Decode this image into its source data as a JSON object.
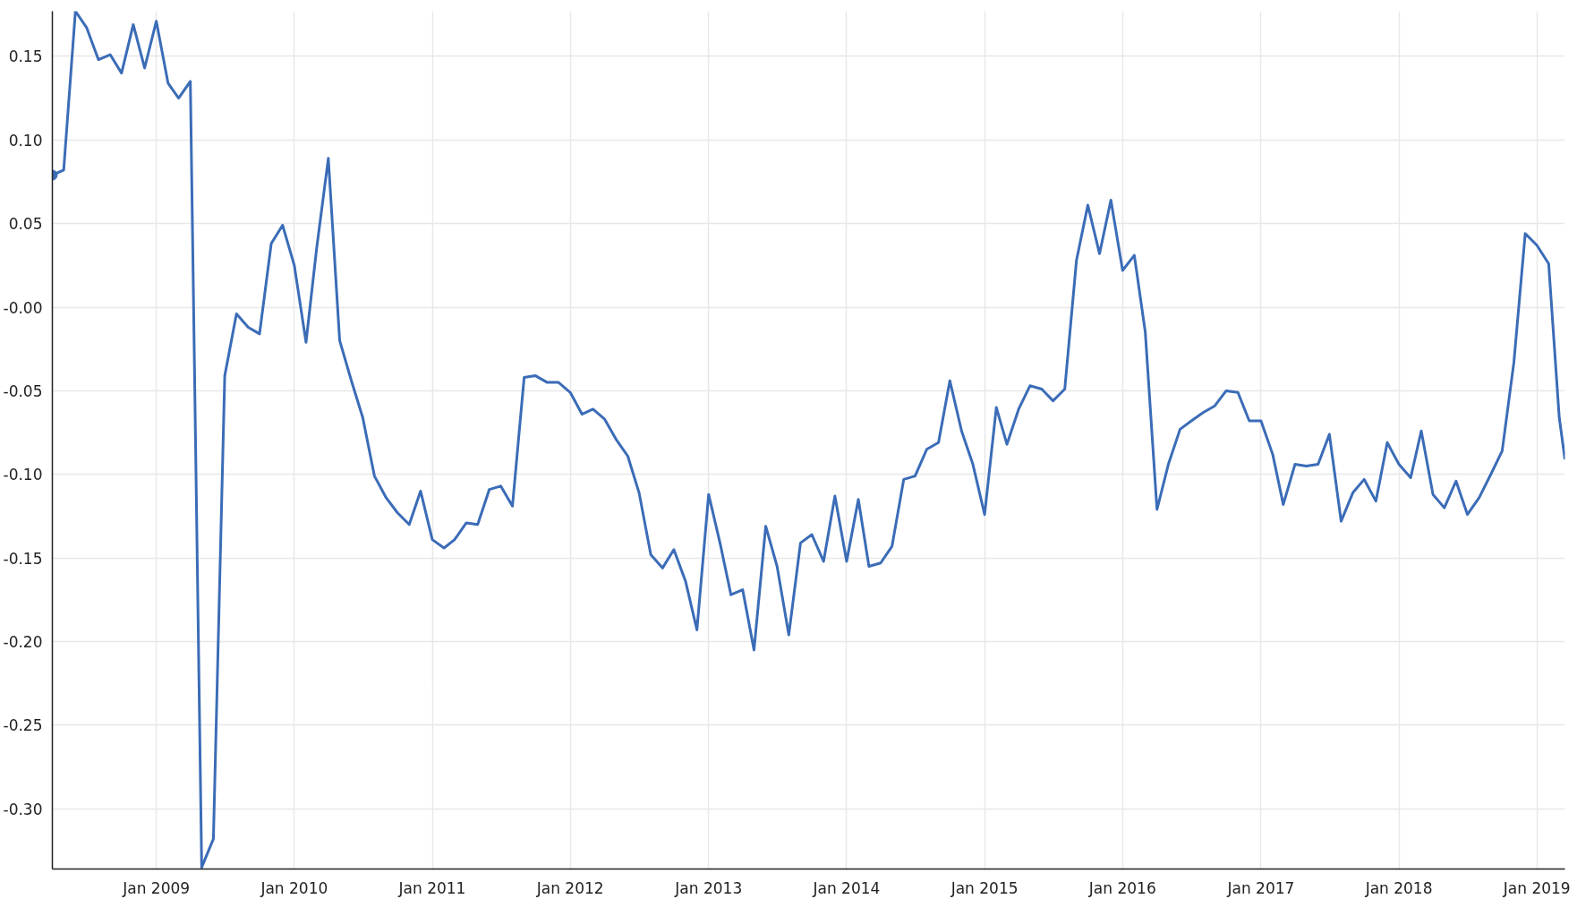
{
  "chart_data": {
    "type": "line",
    "x": [
      "2008-04",
      "2008-05",
      "2008-06",
      "2008-07",
      "2008-08",
      "2008-09",
      "2008-10",
      "2008-11",
      "2008-12",
      "2009-01",
      "2009-02",
      "2009-03",
      "2009-04",
      "2009-05",
      "2009-06",
      "2009-07",
      "2009-08",
      "2009-09",
      "2009-10",
      "2009-11",
      "2009-12",
      "2010-01",
      "2010-02",
      "2010-03",
      "2010-04",
      "2010-05",
      "2010-06",
      "2010-07",
      "2010-08",
      "2010-09",
      "2010-10",
      "2010-11",
      "2010-12",
      "2011-01",
      "2011-02",
      "2011-03",
      "2011-04",
      "2011-05",
      "2011-06",
      "2011-07",
      "2011-08",
      "2011-09",
      "2011-10",
      "2011-11",
      "2011-12",
      "2012-01",
      "2012-02",
      "2012-03",
      "2012-04",
      "2012-05",
      "2012-06",
      "2012-07",
      "2012-08",
      "2012-09",
      "2012-10",
      "2012-11",
      "2012-12",
      "2013-01",
      "2013-02",
      "2013-03",
      "2013-04",
      "2013-05",
      "2013-06",
      "2013-07",
      "2013-08",
      "2013-09",
      "2013-10",
      "2013-11",
      "2013-12",
      "2014-01",
      "2014-02",
      "2014-03",
      "2014-04",
      "2014-05",
      "2014-06",
      "2014-07",
      "2014-08",
      "2014-09",
      "2014-10",
      "2014-11",
      "2014-12",
      "2015-01",
      "2015-02",
      "2015-03",
      "2015-04",
      "2015-05",
      "2015-06",
      "2015-07",
      "2015-08",
      "2015-09",
      "2015-10",
      "2015-11",
      "2015-12",
      "2016-01",
      "2016-02",
      "2016-03",
      "2016-04",
      "2016-05",
      "2016-06",
      "2016-07",
      "2016-08",
      "2016-09",
      "2016-10",
      "2016-11",
      "2016-12",
      "2017-01",
      "2017-02",
      "2017-03",
      "2017-04",
      "2017-05",
      "2017-06",
      "2017-07",
      "2017-08",
      "2017-09",
      "2017-10",
      "2017-11",
      "2017-12",
      "2018-01",
      "2018-02",
      "2018-03",
      "2018-04",
      "2018-05",
      "2018-06",
      "2018-07",
      "2018-08",
      "2018-09",
      "2018-10",
      "2018-11",
      "2018-12",
      "2019-01",
      "2019-02",
      "2019-03",
      "2019-03-16"
    ],
    "series": [
      {
        "color": "#3b6cb7",
        "values": [
          0.079,
          0.082,
          0.177,
          0.167,
          0.148,
          0.151,
          0.14,
          0.169,
          0.143,
          0.171,
          0.134,
          0.125,
          0.135,
          -0.335,
          -0.318,
          -0.041,
          -0.004,
          -0.012,
          -0.016,
          0.038,
          0.049,
          0.025,
          -0.021,
          0.035,
          0.089,
          -0.02,
          -0.044,
          -0.066,
          -0.101,
          -0.114,
          -0.123,
          -0.13,
          -0.11,
          -0.139,
          -0.144,
          -0.139,
          -0.129,
          -0.13,
          -0.109,
          -0.107,
          -0.119,
          -0.042,
          -0.041,
          -0.045,
          -0.045,
          -0.051,
          -0.064,
          -0.061,
          -0.067,
          -0.079,
          -0.089,
          -0.111,
          -0.148,
          -0.156,
          -0.145,
          -0.164,
          -0.193,
          -0.112,
          -0.142,
          -0.172,
          -0.169,
          -0.205,
          -0.131,
          -0.155,
          -0.196,
          -0.141,
          -0.136,
          -0.152,
          -0.113,
          -0.152,
          -0.115,
          -0.155,
          -0.153,
          -0.143,
          -0.103,
          -0.101,
          -0.085,
          -0.081,
          -0.044,
          -0.074,
          -0.094,
          -0.124,
          -0.06,
          -0.082,
          -0.061,
          -0.047,
          -0.049,
          -0.056,
          -0.049,
          0.028,
          0.061,
          0.032,
          0.064,
          0.022,
          0.031,
          -0.015,
          -0.121,
          -0.094,
          -0.073,
          -0.068,
          -0.063,
          -0.059,
          -0.05,
          -0.051,
          -0.068,
          -0.068,
          -0.088,
          -0.118,
          -0.094,
          -0.095,
          -0.094,
          -0.076,
          -0.128,
          -0.111,
          -0.103,
          -0.116,
          -0.081,
          -0.094,
          -0.102,
          -0.074,
          -0.112,
          -0.12,
          -0.104,
          -0.124,
          -0.114,
          -0.1,
          -0.086,
          -0.033,
          0.044,
          0.037,
          0.026,
          -0.066,
          -0.091
        ]
      },
      {
        "type": "scatter",
        "marker": "circle",
        "color": "#3b6cb7",
        "x": [
          "2008-04"
        ],
        "values": [
          0.079
        ]
      }
    ],
    "xlim": [
      "2008-04",
      "2019-03-16"
    ],
    "ylim": [
      -0.336,
      0.177
    ],
    "xticks": [
      {
        "value": "2009-01",
        "label": "Jan 2009"
      },
      {
        "value": "2010-01",
        "label": "Jan 2010"
      },
      {
        "value": "2011-01",
        "label": "Jan 2011"
      },
      {
        "value": "2012-01",
        "label": "Jan 2012"
      },
      {
        "value": "2013-01",
        "label": "Jan 2013"
      },
      {
        "value": "2014-01",
        "label": "Jan 2014"
      },
      {
        "value": "2015-01",
        "label": "Jan 2015"
      },
      {
        "value": "2016-01",
        "label": "Jan 2016"
      },
      {
        "value": "2017-01",
        "label": "Jan 2017"
      },
      {
        "value": "2018-01",
        "label": "Jan 2018"
      },
      {
        "value": "2019-01",
        "label": "Jan 2019"
      }
    ],
    "yticks": [
      {
        "value": -0.3,
        "label": "-0.30"
      },
      {
        "value": -0.25,
        "label": "-0.25"
      },
      {
        "value": -0.2,
        "label": "-0.20"
      },
      {
        "value": -0.15,
        "label": "-0.15"
      },
      {
        "value": -0.1,
        "label": "-0.10"
      },
      {
        "value": -0.05,
        "label": "-0.05"
      },
      {
        "value": 0,
        "label": "-0.00"
      },
      {
        "value": 0.05,
        "label": "0.05"
      },
      {
        "value": 0.1,
        "label": "0.10"
      },
      {
        "value": 0.15,
        "label": "0.15"
      }
    ],
    "grid": true,
    "marker": "none",
    "line_style": "solid"
  }
}
